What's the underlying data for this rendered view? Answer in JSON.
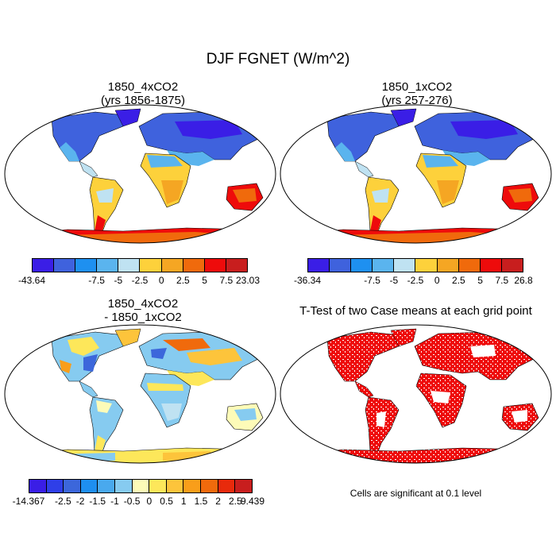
{
  "main_title": "DJF FGNET (W/m^2)",
  "panels": [
    {
      "title_line1": "1850_4xCO2",
      "title_line2": "(yrs 1856-1875)"
    },
    {
      "title_line1": "1850_1xCO2",
      "title_line2": "(yrs 257-276)"
    },
    {
      "title_line1": "1850_4xCO2",
      "title_line2": "- 1850_1xCO2"
    },
    {
      "title_line1": "T-Test of two Case means at each grid point",
      "title_line2": ""
    }
  ],
  "colorbar1": {
    "colors": [
      "#3a1ee6",
      "#3f62dd",
      "#1e90f0",
      "#5ab4ee",
      "#bfe2f2",
      "#fdd13b",
      "#f5a623",
      "#f06a0c",
      "#ee0b0b",
      "#c81e1e"
    ],
    "labels": [
      "-43.64",
      "-7.5",
      "-5",
      "-2.5",
      "0",
      "2.5",
      "5",
      "7.5",
      "23.03"
    ]
  },
  "colorbar2": {
    "colors": [
      "#3a1ee6",
      "#3f62dd",
      "#1e90f0",
      "#5ab4ee",
      "#bfe2f2",
      "#fdd13b",
      "#f5a623",
      "#f06a0c",
      "#ee0b0b",
      "#c81e1e"
    ],
    "labels": [
      "-36.34",
      "-7.5",
      "-5",
      "-2.5",
      "0",
      "2.5",
      "5",
      "7.5",
      "26.8"
    ]
  },
  "colorbar3": {
    "colors": [
      "#3a1ee6",
      "#2f3fe8",
      "#3c67db",
      "#1e8ff0",
      "#49a9ee",
      "#86cbf0",
      "#fdfbb8",
      "#fde75a",
      "#fdc43b",
      "#f99e1a",
      "#f06a0c",
      "#e82a0c",
      "#c81e1e"
    ],
    "labels": [
      "-14.367",
      "-2.5",
      "-2",
      "-1.5",
      "-1",
      "-0.5",
      "0",
      "0.5",
      "1",
      "1.5",
      "2",
      "2.5",
      "9.439"
    ]
  },
  "ttest_note": "Cells are significant at 0.1 level",
  "map_colors": {
    "ocean": "#ffffff",
    "outline": "#000000",
    "significant": "#ee0b0b"
  }
}
